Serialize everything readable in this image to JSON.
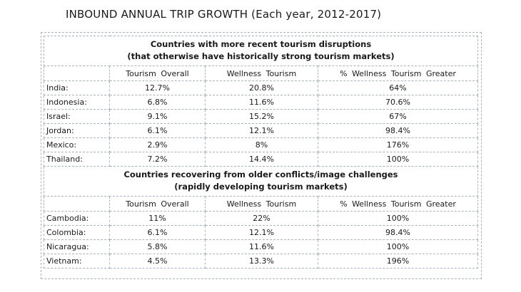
{
  "title": "INBOUND ANNUAL TRIP GROWTH (Each year, 2012-2017)",
  "columns": [
    "Tourism  Overall",
    "Wellness  Tourism",
    "% Wellness  Tourism  Greater"
  ],
  "chart_data": {
    "type": "table",
    "columns": [
      "",
      "Tourism  Overall",
      "Wellness  Tourism",
      "% Wellness  Tourism  Greater"
    ],
    "sections": [
      {
        "title_line1": "Countries with more recent tourism disruptions",
        "title_line2": "(that otherwise have historically strong tourism markets)",
        "rows": [
          {
            "country": "India:",
            "overall": "12.7%",
            "wellness": "20.8%",
            "greater": "64%"
          },
          {
            "country": "Indonesia:",
            "overall": "6.8%",
            "wellness": "11.6%",
            "greater": "70.6%"
          },
          {
            "country": "Israel:",
            "overall": "9.1%",
            "wellness": "15.2%",
            "greater": "67%"
          },
          {
            "country": "Jordan:",
            "overall": "6.1%",
            "wellness": "12.1%",
            "greater": "98.4%"
          },
          {
            "country": "Mexico:",
            "overall": "2.9%",
            "wellness": "8%",
            "greater": "176%"
          },
          {
            "country": "Thailand:",
            "overall": "7.2%",
            "wellness": "14.4%",
            "greater": "100%"
          }
        ]
      },
      {
        "title_line1": "Countries recovering from older conflicts/image challenges",
        "title_line2": "(rapidly developing tourism markets)",
        "rows": [
          {
            "country": "Cambodia:",
            "overall": "11%",
            "wellness": "22%",
            "greater": "100%"
          },
          {
            "country": "Colombia:",
            "overall": "6.1%",
            "wellness": "12.1%",
            "greater": "98.4%"
          },
          {
            "country": "Nicaragua:",
            "overall": "5.8%",
            "wellness": "11.6%",
            "greater": "100%"
          },
          {
            "country": "Vietnam:",
            "overall": "4.5%",
            "wellness": "13.3%",
            "greater": "196%"
          }
        ]
      }
    ]
  }
}
